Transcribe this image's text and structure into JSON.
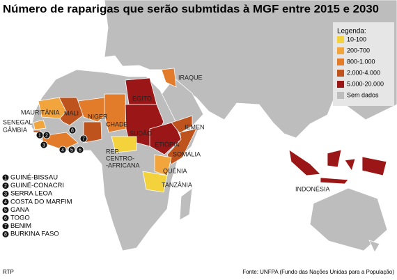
{
  "title": "Número de raparigas que serão submtidas à MGF entre 2015 e 2030",
  "legend": {
    "title": "Legenda:",
    "items": [
      {
        "label": "10-100",
        "color": "#f3d23c"
      },
      {
        "label": "200-700",
        "color": "#f2a43d"
      },
      {
        "label": "800-1.000",
        "color": "#e27b2a"
      },
      {
        "label": "2.000-4.000",
        "color": "#bf531d"
      },
      {
        "label": "5.000-20.000",
        "color": "#9b1717"
      },
      {
        "label": "Sem dados",
        "color": "#bdbdbd"
      }
    ]
  },
  "countries": [
    {
      "label_lines": [
        "MAURITÂNIA"
      ],
      "color": "#f2a43d"
    },
    {
      "label_lines": [
        "MALI"
      ],
      "color": "#bf531d"
    },
    {
      "label_lines": [
        "NIGER"
      ],
      "color": "#e27b2a"
    },
    {
      "label_lines": [
        "CHADE"
      ],
      "color": "#e27b2a"
    },
    {
      "label_lines": [
        "EGITO"
      ],
      "color": "#9b1717"
    },
    {
      "label_lines": [
        "SUDÃO"
      ],
      "color": "#9b1717"
    },
    {
      "label_lines": [
        "ETIÓPIA"
      ],
      "color": "#9b1717"
    },
    {
      "label_lines": [
        "SOMÁLIA"
      ],
      "color": "#bf531d"
    },
    {
      "label_lines": [
        "IEMEN"
      ],
      "color": "#bf531d"
    },
    {
      "label_lines": [
        "IRAQUE"
      ],
      "color": "#e27b2a"
    },
    {
      "label_lines": [
        "QUÉNIA"
      ],
      "color": "#f2a43d"
    },
    {
      "label_lines": [
        "TANZÂNIA"
      ],
      "color": "#f3d23c"
    },
    {
      "label_lines": [
        "REP.",
        "CENTRO-",
        "-AFRICANA"
      ],
      "color": "#f3d23c"
    },
    {
      "label_lines": [
        "SENEGAL"
      ],
      "color": "#f2a43d"
    },
    {
      "label_lines": [
        "GÂMBIA"
      ],
      "color": "#bf531d"
    },
    {
      "label_lines": [
        "INDONÉSIA"
      ],
      "color": "#9b1717"
    }
  ],
  "numbered_countries": [
    {
      "number": 1,
      "name": "GUINÉ-BISSAU"
    },
    {
      "number": 2,
      "name": "GUINÉ-CONACRI"
    },
    {
      "number": 3,
      "name": "SERRA LEOA"
    },
    {
      "number": 4,
      "name": "COSTA DO MARFIM"
    },
    {
      "number": 5,
      "name": "GANA"
    },
    {
      "number": 6,
      "name": "TOGO"
    },
    {
      "number": 7,
      "name": "BENIM"
    },
    {
      "number": 8,
      "name": "BURKINA FASO"
    }
  ],
  "credit": "RTP",
  "source": "Fonte: UNFPA (Fundo das Nações Unidas para a População)"
}
